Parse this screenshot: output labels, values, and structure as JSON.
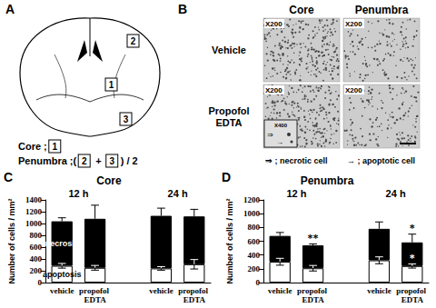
{
  "panel_a": {
    "letter": "A",
    "core": {
      "label": "Core ;",
      "box": "1"
    },
    "penumbra": {
      "label": "Penumbra ;(",
      "boxes": [
        "2",
        "3"
      ],
      "join": " + ",
      "tail": ") / 2"
    }
  },
  "panel_b": {
    "letter": "B",
    "columns": [
      "Core",
      "Penumbra"
    ],
    "rows": [
      [
        "Vehicle"
      ],
      [
        "Propofol",
        "EDTA"
      ]
    ],
    "magnification": "X200",
    "inset_magnification": "X400",
    "legend": [
      {
        "symbol": "⇒",
        "text": "; necrotic cell"
      },
      {
        "symbol": "→",
        "text": "; apoptotic cell"
      }
    ]
  },
  "chart_data": [
    {
      "type": "bar",
      "letter": "C",
      "title": "Core",
      "y_label": "Number of cells / mm²",
      "categories": [
        "vehicle",
        "propofol EDTA",
        null,
        "vehicle",
        "propofol EDTA"
      ],
      "group_labels": [
        "12 h",
        "24 h"
      ],
      "stacked": true,
      "ylim": [
        0,
        1400
      ],
      "yticks": [
        0,
        200,
        400,
        600,
        800,
        1000,
        1200,
        1400
      ],
      "series": [
        {
          "name": "apoptosis",
          "color": "#ffffff",
          "values": [
            284,
            250,
            null,
            240,
            310
          ],
          "errors": [
            40,
            40,
            null,
            30,
            80
          ]
        },
        {
          "name": "necrosis",
          "color": "#000000",
          "values": [
            753,
            830,
            null,
            890,
            810
          ],
          "errors": [
            60,
            230,
            null,
            130,
            120
          ]
        }
      ]
    },
    {
      "type": "bar",
      "letter": "D",
      "title": "Penumbra",
      "y_label": "Number of cells / mm²",
      "categories": [
        "vehicle",
        "propofol EDTA",
        null,
        "vehicle",
        "propofol EDTA"
      ],
      "group_labels": [
        "12 h",
        "24 h"
      ],
      "stacked": true,
      "ylim": [
        0,
        1200
      ],
      "yticks": [
        0,
        200,
        400,
        600,
        800,
        1000,
        1200
      ],
      "series": [
        {
          "color": "#ffffff",
          "values": [
            302,
            208,
            null,
            323,
            240
          ],
          "errors": [
            50,
            40,
            null,
            50,
            30
          ],
          "significance": [
            null,
            null,
            null,
            null,
            "*"
          ]
        },
        {
          "color": "#000000",
          "values": [
            375,
            332,
            null,
            457,
            343
          ],
          "errors": [
            50,
            20,
            null,
            100,
            120
          ],
          "significance": [
            null,
            "**",
            null,
            null,
            "*"
          ]
        }
      ]
    }
  ]
}
